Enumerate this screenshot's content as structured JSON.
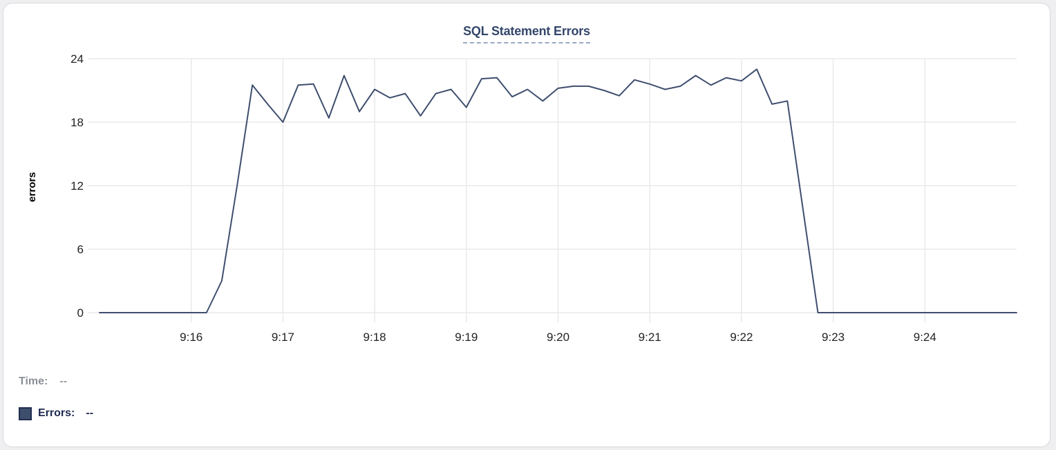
{
  "title": "SQL Statement Errors",
  "colors": {
    "line": "#3e4e6e",
    "title": "#33466b",
    "title_underline": "#9aa8c4",
    "grid": "#e9e9ea",
    "tick_text": "#222222",
    "axis_label_text": "#000000",
    "time_label": "#8b9097",
    "errors_label": "#1f2a50",
    "swatch": "#3e4f6d"
  },
  "legend": {
    "time_label": "Time:",
    "time_value": "--",
    "errors_label": "Errors:",
    "errors_value": "--"
  },
  "chart_data": {
    "type": "line",
    "title": "SQL Statement Errors",
    "xlabel": "",
    "ylabel": "errors",
    "ylim": [
      0,
      24
    ],
    "y_ticks": [
      0,
      6,
      12,
      18,
      24
    ],
    "x_ticks": [
      "9:16",
      "9:17",
      "9:18",
      "9:19",
      "9:20",
      "9:21",
      "9:22",
      "9:23",
      "9:24"
    ],
    "grid": true,
    "legend_position": "bottom-left",
    "series": [
      {
        "name": "Errors",
        "color": "#3e4e6e",
        "x": [
          "9:15:00",
          "9:15:10",
          "9:15:20",
          "9:15:30",
          "9:15:40",
          "9:15:50",
          "9:16:00",
          "9:16:10",
          "9:16:20",
          "9:16:30",
          "9:16:40",
          "9:16:50",
          "9:17:00",
          "9:17:10",
          "9:17:20",
          "9:17:30",
          "9:17:40",
          "9:17:50",
          "9:18:00",
          "9:18:10",
          "9:18:20",
          "9:18:30",
          "9:18:40",
          "9:18:50",
          "9:19:00",
          "9:19:10",
          "9:19:20",
          "9:19:30",
          "9:19:40",
          "9:19:50",
          "9:20:00",
          "9:20:10",
          "9:20:20",
          "9:20:30",
          "9:20:40",
          "9:20:50",
          "9:21:00",
          "9:21:10",
          "9:21:20",
          "9:21:30",
          "9:21:40",
          "9:21:50",
          "9:22:00",
          "9:22:10",
          "9:22:20",
          "9:22:30",
          "9:22:40",
          "9:22:50",
          "9:23:00",
          "9:23:10",
          "9:23:20",
          "9:23:30",
          "9:23:40",
          "9:23:50",
          "9:24:00",
          "9:24:10",
          "9:24:20",
          "9:24:30",
          "9:24:40",
          "9:24:50",
          "9:25:00"
        ],
        "values": [
          0,
          0,
          0,
          0,
          0,
          0,
          0,
          0,
          3,
          12,
          21.5,
          19.7,
          18,
          21.5,
          21.6,
          18.4,
          22.4,
          19,
          21.1,
          20.3,
          20.7,
          18.6,
          20.7,
          21.1,
          19.4,
          22.1,
          22.2,
          20.4,
          21.1,
          20,
          21.2,
          21.4,
          21.4,
          21,
          20.5,
          22,
          21.6,
          21.1,
          21.4,
          22.4,
          21.5,
          22.2,
          21.9,
          23,
          19.7,
          20,
          10,
          0,
          0,
          0,
          0,
          0,
          0,
          0,
          0,
          0,
          0,
          0,
          0,
          0,
          0
        ]
      }
    ]
  }
}
